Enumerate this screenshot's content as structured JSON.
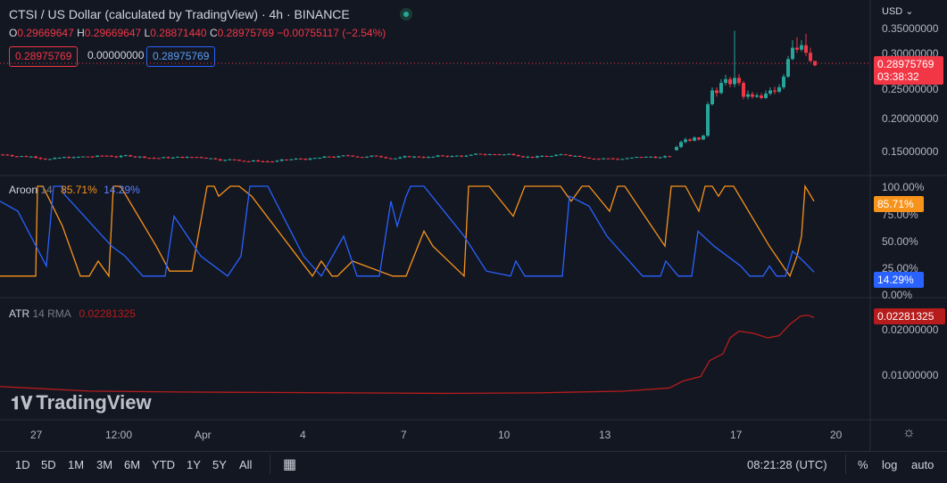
{
  "header": {
    "title": "CTSI / US Dollar (calculated by TradingView) · 4h · BINANCE",
    "ohlc": {
      "o_label": "O",
      "o": "0.29669647",
      "h_label": "H",
      "h": "0.29669647",
      "l_label": "L",
      "l": "0.28871440",
      "c_label": "C",
      "c": "0.28975769",
      "change": "−0.00755117 (−2.54%)"
    },
    "bid": "0.28975769",
    "spread": "0.00000000",
    "ask": "0.28975769"
  },
  "price_axis": {
    "currency": "USD",
    "ticks": [
      "0.35000000",
      "0.30000000",
      "0.25000000",
      "0.20000000",
      "0.15000000"
    ],
    "last_price": "0.28975769",
    "countdown": "03:38:32"
  },
  "aroon": {
    "name": "Aroon",
    "length": "14",
    "up": "85.71%",
    "down": "14.29%",
    "ticks": [
      "100.00%",
      "75.00%",
      "50.00%",
      "25.00%",
      "0.00%"
    ],
    "up_color": "#f7931a",
    "down_color": "#2962ff"
  },
  "atr": {
    "name": "ATR",
    "params": "14 RMA",
    "value": "0.02281325",
    "ticks": [
      "0.02000000",
      "0.01000000"
    ],
    "color": "#b71c1c"
  },
  "watermark": "TradingView",
  "time_axis": [
    "27",
    "12:00",
    "Apr",
    "4",
    "7",
    "10",
    "13",
    "17",
    "20"
  ],
  "timeframes": [
    "1D",
    "5D",
    "1M",
    "3M",
    "6M",
    "YTD",
    "1Y",
    "5Y",
    "All"
  ],
  "clock": "08:21:28 (UTC)",
  "scale_options": {
    "percent": "%",
    "log": "log",
    "auto": "auto"
  },
  "colors": {
    "up": "#26a69a",
    "down": "#f23645",
    "bg": "#131722"
  }
}
